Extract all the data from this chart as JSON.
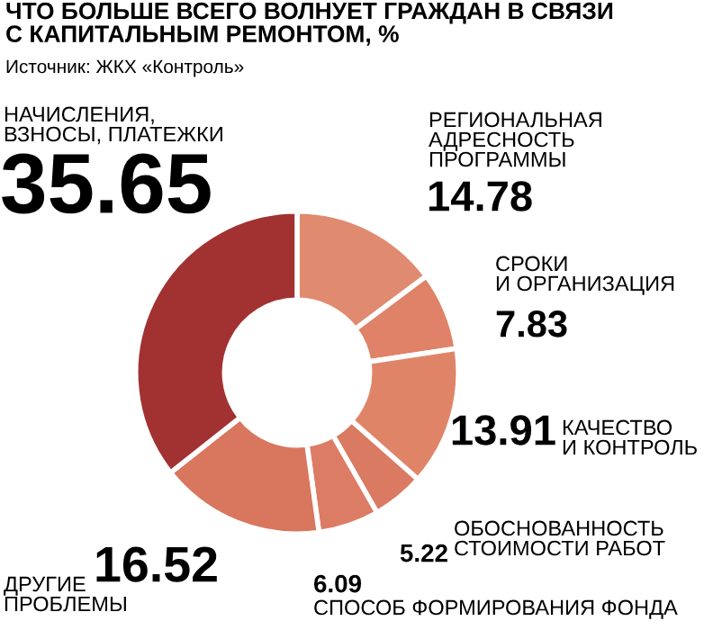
{
  "chart_data": {
    "type": "donut",
    "title": "ЧТО БОЛЬШЕ ВСЕГО ВОЛНУЕТ ГРАЖДАН В СВЯЗИ\nС КАПИТАЛЬНЫМ РЕМОНТОМ, %",
    "subtitle": "Источник: ЖКХ «Контроль»",
    "categories": [
      "РЕГИОНАЛЬНАЯ\nАДРЕСНОСТЬ\nПРОГРАММЫ",
      "СРОКИ\nИ ОРГАНИЗАЦИЯ",
      "КАЧЕСТВО\nИ КОНТРОЛЬ",
      "ОБОСНОВАННОСТЬ\nСТОИМОСТИ РАБОТ",
      "СПОСОБ ФОРМИРОВАНИЯ ФОНДА",
      "ДРУГИЕ\nПРОБЛЕМЫ",
      "НАЧИСЛЕНИЯ,\nВЗНОСЫ, ПЛАТЕЖКИ"
    ],
    "values": [
      14.78,
      7.83,
      13.91,
      5.22,
      6.09,
      16.52,
      35.65
    ],
    "colors": [
      "#e08a70",
      "#df8268",
      "#e08468",
      "#da7a62",
      "#dd7c64",
      "#d9765e",
      "#a23232"
    ],
    "data_labels": true
  }
}
